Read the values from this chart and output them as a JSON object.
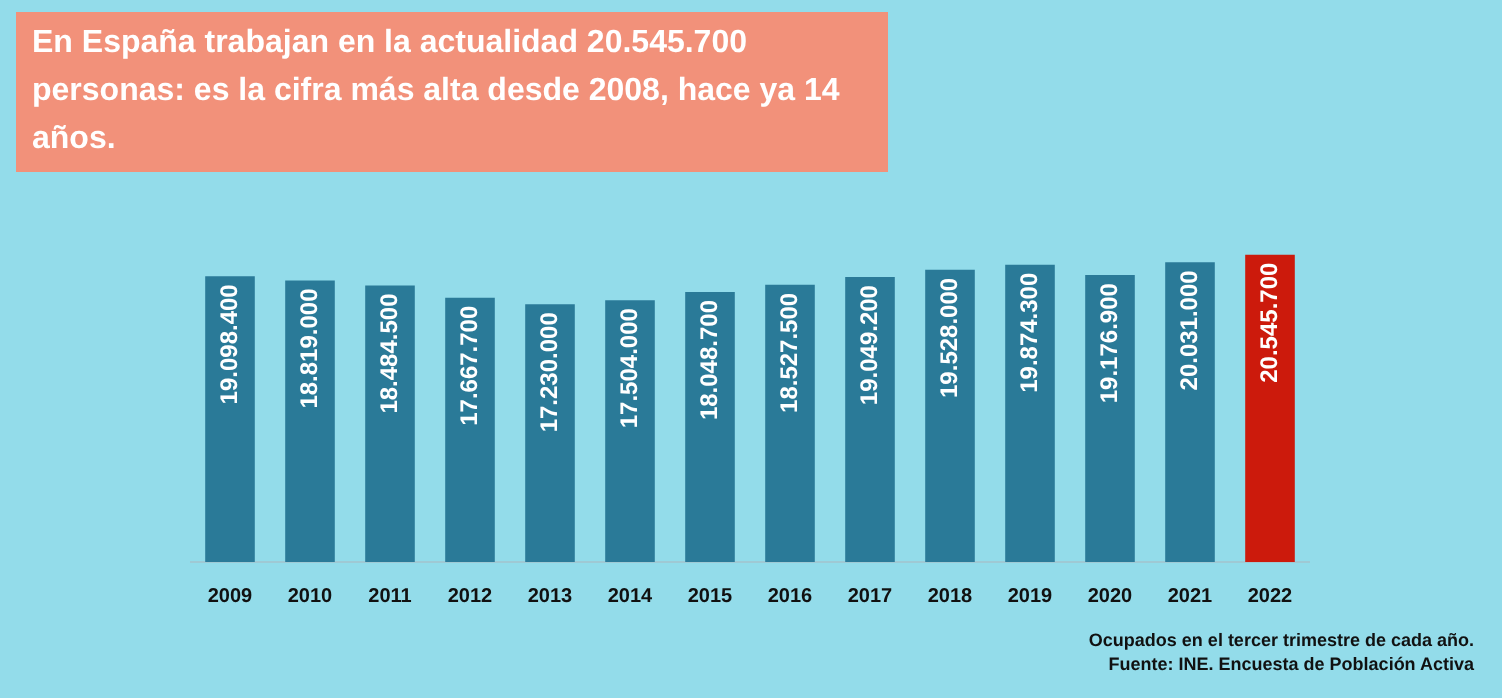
{
  "chart_data": {
    "type": "bar",
    "title": "En España trabajan en la actualidad 20.545.700 personas: es la cifra más alta desde 2008, hace ya 14 años.",
    "categories": [
      "2009",
      "2010",
      "2011",
      "2012",
      "2013",
      "2014",
      "2015",
      "2016",
      "2017",
      "2018",
      "2019",
      "2020",
      "2021",
      "2022"
    ],
    "values": [
      19098400,
      18819000,
      18484500,
      17667700,
      17230000,
      17504000,
      18048700,
      18527500,
      19049200,
      19528000,
      19874300,
      19176900,
      20031000,
      20545700
    ],
    "colors": [
      "#2a7a98",
      "#2a7a98",
      "#2a7a98",
      "#2a7a98",
      "#2a7a98",
      "#2a7a98",
      "#2a7a98",
      "#2a7a98",
      "#2a7a98",
      "#2a7a98",
      "#2a7a98",
      "#2a7a98",
      "#2a7a98",
      "#cc1a0c"
    ],
    "value_labels": [
      "19.098.400",
      "18.819.000",
      "18.484.500",
      "17.667.700",
      "17.230.000",
      "17.504.000",
      "18.048.700",
      "18.527.500",
      "19.049.200",
      "19.528.000",
      "19.874.300",
      "19.176.900",
      "20.031.000",
      "20.545.700"
    ],
    "annotations": [
      "Ocupados en el tercer trimestre de cada año.",
      "Fuente: INE. Encuesta de Población Activa"
    ]
  }
}
